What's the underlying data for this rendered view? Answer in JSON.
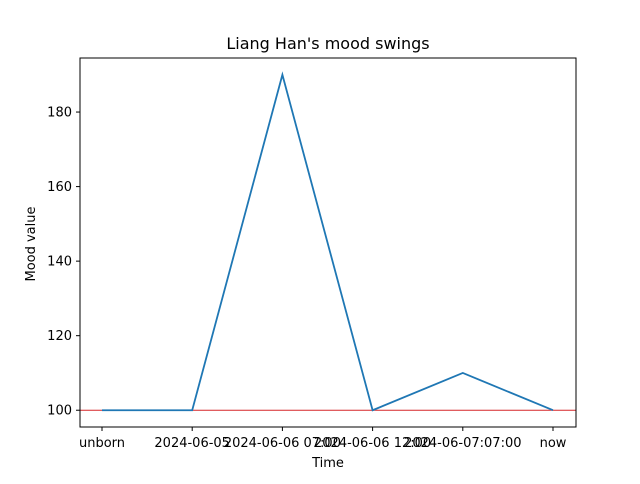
{
  "chart_data": {
    "type": "line",
    "title": "Liang Han's mood swings",
    "xlabel": "Time",
    "ylabel": "Mood value",
    "categories": [
      "unborn",
      "2024-06-05",
      "2024-06-06 07:00",
      "2024-06-06 12:00",
      "2024-06-07:07:00",
      "now"
    ],
    "series": [
      {
        "values": [
          100,
          100,
          190,
          100,
          110,
          100
        ],
        "color": "#1f77b4"
      }
    ],
    "reference_line": {
      "y": 100,
      "color": "#d62728"
    },
    "ylim": [
      95.5,
      194.5
    ],
    "yticks": [
      100,
      120,
      140,
      160,
      180
    ],
    "grid": false,
    "legend": "none"
  }
}
